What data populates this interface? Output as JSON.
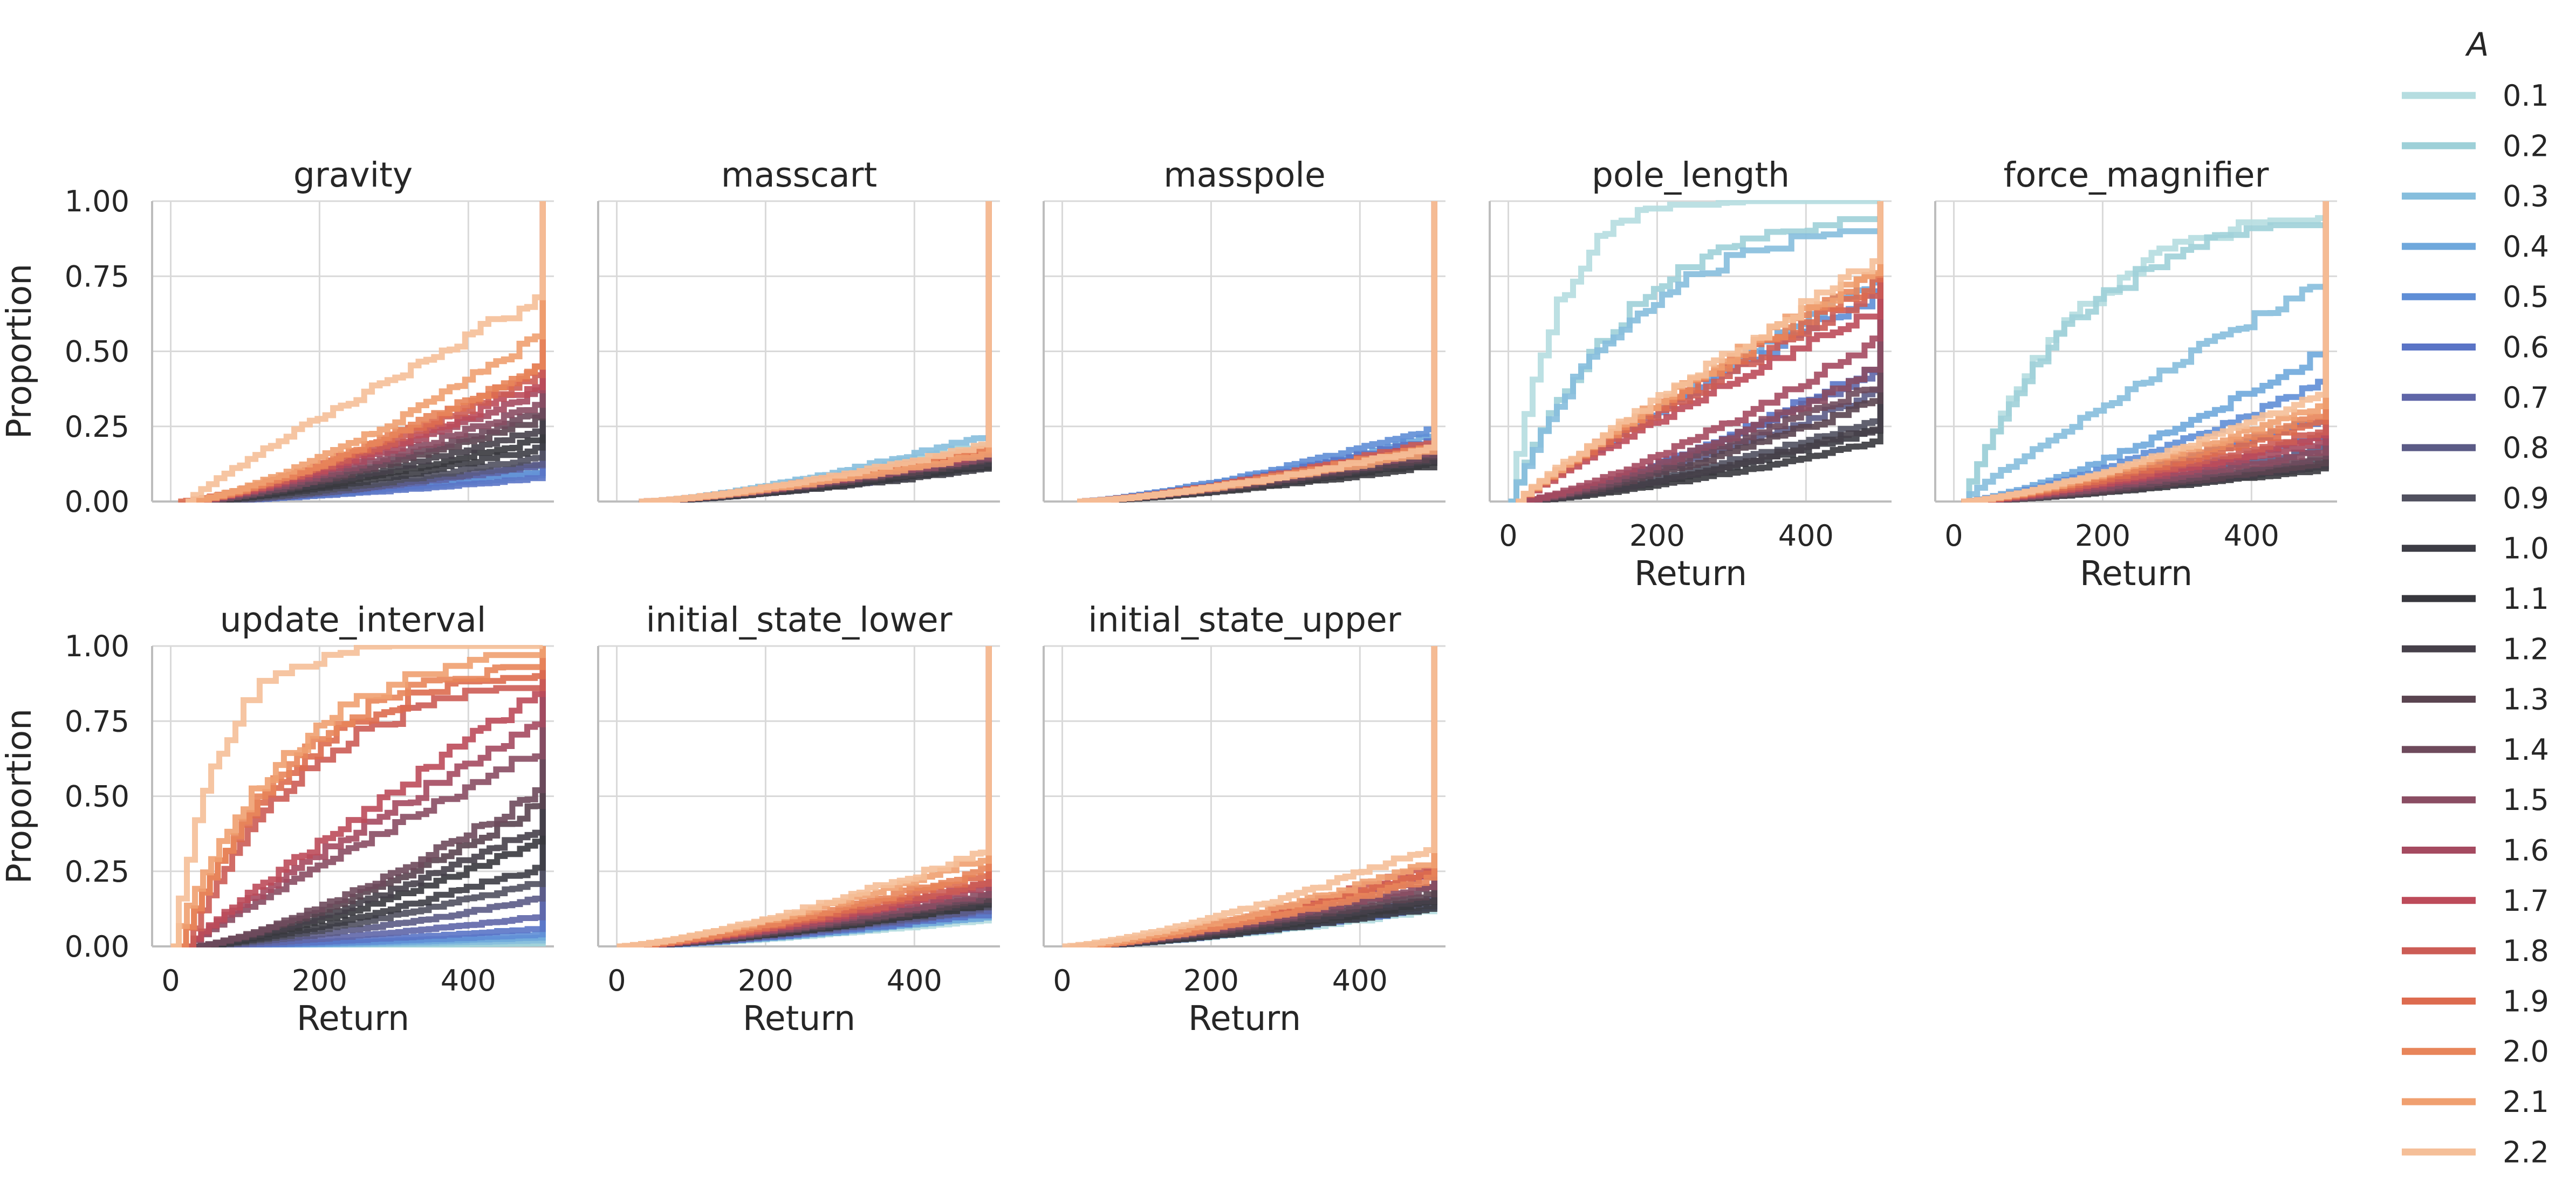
{
  "chart_data": {
    "type": "line",
    "subtype": "empirical-cdf-step",
    "xlabel": "Return",
    "ylabel": "Proportion",
    "xlim": [
      -25,
      515
    ],
    "ylim": [
      0,
      1
    ],
    "xticks": [
      0,
      200,
      400
    ],
    "yticks": [
      0.0,
      0.25,
      0.5,
      0.75,
      1.0
    ],
    "ytick_labels": [
      "0.00",
      "0.25",
      "0.50",
      "0.75",
      "1.00"
    ],
    "grid": true,
    "legend": {
      "title": "A",
      "placement": "right",
      "entries": [
        "0.1",
        "0.2",
        "0.3",
        "0.4",
        "0.5",
        "0.6",
        "0.7",
        "0.8",
        "0.9",
        "1.0",
        "1.1",
        "1.2",
        "1.3",
        "1.4",
        "1.5",
        "1.6",
        "1.7",
        "1.8",
        "1.9",
        "2.0",
        "2.1",
        "2.2"
      ],
      "colors": [
        "#b5dde0",
        "#9ed0d8",
        "#86bedd",
        "#6fa8dc",
        "#5f8ed6",
        "#5a74c6",
        "#5f66a8",
        "#5b5b86",
        "#50505f",
        "#3d3d45",
        "#38383e",
        "#46404a",
        "#5a4450",
        "#6e4a5c",
        "#8a4d63",
        "#a54a60",
        "#bd4b5a",
        "#cc5c55",
        "#dd6b4f",
        "#e8855a",
        "#f0a070",
        "#f5bf98"
      ]
    },
    "panels": [
      {
        "title": "gravity",
        "show_xticks": false,
        "show_ylabel": true,
        "final": [
          0.11,
          0.1,
          0.09,
          0.12,
          0.1,
          0.08,
          0.12,
          0.13,
          0.15,
          0.18,
          0.21,
          0.24,
          0.28,
          0.3,
          0.33,
          0.37,
          0.4,
          0.43,
          0.45,
          0.47,
          0.56,
          0.68
        ],
        "x_start": [
          30,
          30,
          30,
          30,
          30,
          30,
          40,
          50,
          40,
          30,
          30,
          30,
          30,
          30,
          20,
          20,
          20,
          20,
          10,
          20,
          20,
          20
        ]
      },
      {
        "title": "masscart",
        "show_xticks": false,
        "show_ylabel": false,
        "final": [
          0.18,
          0.2,
          0.22,
          0.16,
          0.14,
          0.15,
          0.12,
          0.13,
          0.12,
          0.11,
          0.12,
          0.13,
          0.14,
          0.15,
          0.15,
          0.16,
          0.17,
          0.18,
          0.17,
          0.18,
          0.16,
          0.19
        ],
        "x_start": [
          40,
          40,
          40,
          40,
          40,
          40,
          40,
          40,
          40,
          30,
          30,
          30,
          30,
          30,
          30,
          30,
          30,
          30,
          30,
          30,
          30,
          30
        ]
      },
      {
        "title": "masspole",
        "show_xticks": false,
        "show_ylabel": false,
        "final": [
          0.15,
          0.17,
          0.19,
          0.22,
          0.24,
          0.21,
          0.19,
          0.17,
          0.15,
          0.13,
          0.12,
          0.14,
          0.15,
          0.16,
          0.17,
          0.18,
          0.19,
          0.2,
          0.18,
          0.19,
          0.17,
          0.18
        ],
        "x_start": [
          20,
          20,
          20,
          20,
          20,
          20,
          20,
          20,
          20,
          20,
          20,
          20,
          20,
          20,
          20,
          20,
          20,
          20,
          20,
          20,
          20,
          20
        ]
      },
      {
        "title": "pole_length",
        "show_xticks": true,
        "show_ylabel": false,
        "final": [
          1.0,
          0.94,
          0.9,
          0.74,
          0.7,
          0.46,
          0.44,
          0.37,
          0.28,
          0.24,
          0.2,
          0.25,
          0.34,
          0.4,
          0.45,
          0.55,
          0.64,
          0.7,
          0.74,
          0.76,
          0.78,
          0.8
        ],
        "x_start": [
          0,
          0,
          0,
          10,
          10,
          10,
          10,
          10,
          10,
          10,
          10,
          10,
          10,
          10,
          10,
          10,
          10,
          10,
          10,
          10,
          10,
          10
        ]
      },
      {
        "title": "force_magnifier",
        "show_xticks": true,
        "show_ylabel": false,
        "final": [
          0.95,
          0.92,
          0.75,
          0.5,
          0.4,
          0.28,
          0.22,
          0.18,
          0.14,
          0.12,
          0.11,
          0.12,
          0.13,
          0.15,
          0.17,
          0.2,
          0.22,
          0.24,
          0.27,
          0.3,
          0.33,
          0.36
        ],
        "x_start": [
          10,
          10,
          10,
          10,
          10,
          10,
          10,
          10,
          10,
          10,
          10,
          10,
          10,
          10,
          10,
          10,
          10,
          10,
          10,
          10,
          10,
          10
        ]
      },
      {
        "title": "update_interval",
        "show_xticks": true,
        "show_ylabel": true,
        "final": [
          0.01,
          0.01,
          0.02,
          0.03,
          0.04,
          0.06,
          0.1,
          0.16,
          0.22,
          0.27,
          0.35,
          0.4,
          0.48,
          0.52,
          0.66,
          0.75,
          0.84,
          0.86,
          0.9,
          0.93,
          0.97,
          1.0
        ],
        "x_start": [
          30,
          30,
          30,
          30,
          30,
          30,
          30,
          30,
          30,
          30,
          30,
          30,
          30,
          30,
          20,
          20,
          20,
          20,
          10,
          10,
          0,
          0
        ]
      },
      {
        "title": "initial_state_lower",
        "show_xticks": true,
        "show_ylabel": false,
        "final": [
          0.09,
          0.1,
          0.11,
          0.1,
          0.12,
          0.11,
          0.12,
          0.13,
          0.14,
          0.15,
          0.14,
          0.15,
          0.16,
          0.17,
          0.18,
          0.2,
          0.21,
          0.22,
          0.24,
          0.26,
          0.3,
          0.32
        ],
        "x_start": [
          10,
          10,
          10,
          10,
          10,
          10,
          10,
          10,
          10,
          10,
          10,
          10,
          10,
          10,
          10,
          10,
          10,
          10,
          10,
          10,
          0,
          0
        ]
      },
      {
        "title": "initial_state_upper",
        "show_xticks": true,
        "show_ylabel": false,
        "final": [
          0.12,
          0.13,
          0.14,
          0.15,
          0.14,
          0.13,
          0.15,
          0.16,
          0.14,
          0.13,
          0.15,
          0.16,
          0.18,
          0.2,
          0.21,
          0.24,
          0.25,
          0.27,
          0.25,
          0.23,
          0.28,
          0.33
        ],
        "x_start": [
          20,
          20,
          20,
          20,
          20,
          20,
          20,
          20,
          20,
          20,
          20,
          20,
          20,
          20,
          20,
          20,
          20,
          20,
          20,
          20,
          10,
          0
        ]
      }
    ]
  }
}
